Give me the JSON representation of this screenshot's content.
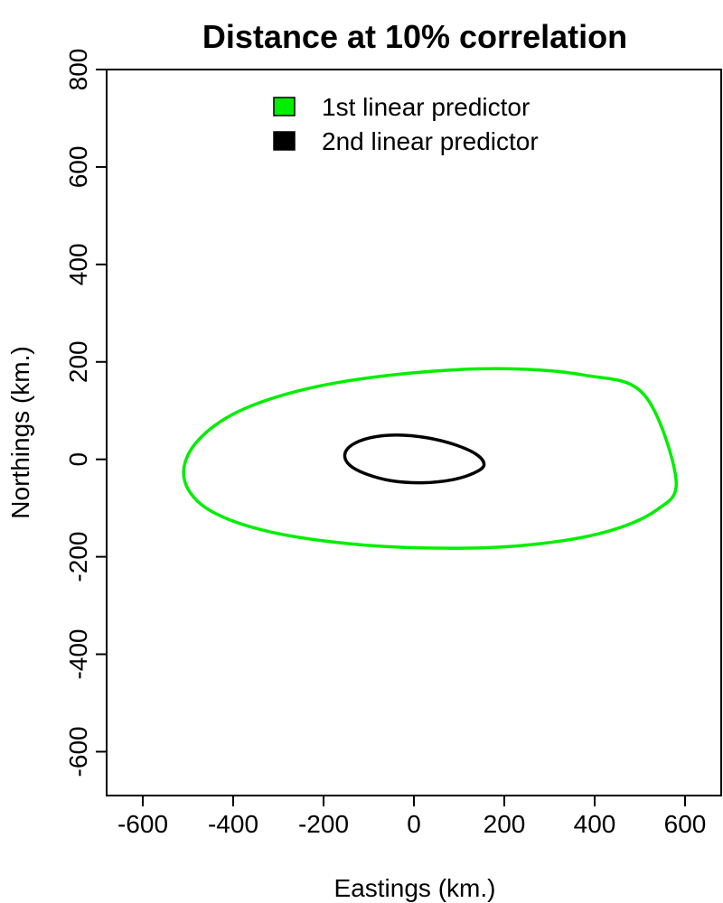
{
  "chart_data": {
    "type": "line",
    "title": "Distance at 10% correlation",
    "xlabel": "Eastings (km.)",
    "ylabel": "Northings (km.)",
    "xlim": [
      -680,
      680
    ],
    "ylim": [
      -690,
      800
    ],
    "x_ticks": [
      -600,
      -400,
      -200,
      0,
      200,
      400,
      600
    ],
    "x_tick_labels": [
      "-600",
      "-400",
      "-200",
      "0",
      "200",
      "400",
      "600"
    ],
    "y_ticks": [
      -600,
      -400,
      -200,
      0,
      200,
      400,
      600,
      800
    ],
    "y_tick_labels": [
      "-600",
      "-400",
      "-200",
      "0",
      "200",
      "400",
      "600",
      "800"
    ],
    "grid": false,
    "legend_position": "top-center",
    "series": [
      {
        "name": "1st linear predictor",
        "color": "#00ee00",
        "x": [
          580,
          537,
          416,
          237,
          30,
          -176,
          -348,
          -463,
          -509,
          -484,
          -391,
          -236,
          -30,
          186,
          376,
          509,
          580
        ],
        "y": [
          -40,
          -104,
          -151,
          -177,
          -182,
          -170,
          -142,
          -98,
          -37,
          32,
          97,
          145,
          175,
          186,
          173,
          133,
          70
        ]
      },
      {
        "name": "2nd linear predictor",
        "color": "#000000",
        "x": [
          155,
          133,
          85,
          19,
          -50,
          -106,
          -142,
          -153,
          -138,
          -98,
          -39,
          30,
          94,
          140,
          155
        ],
        "y": [
          -12,
          -28,
          -42,
          -48,
          -44,
          -30,
          -12,
          9,
          29,
          44,
          50,
          44,
          29,
          9,
          -12
        ]
      }
    ]
  }
}
